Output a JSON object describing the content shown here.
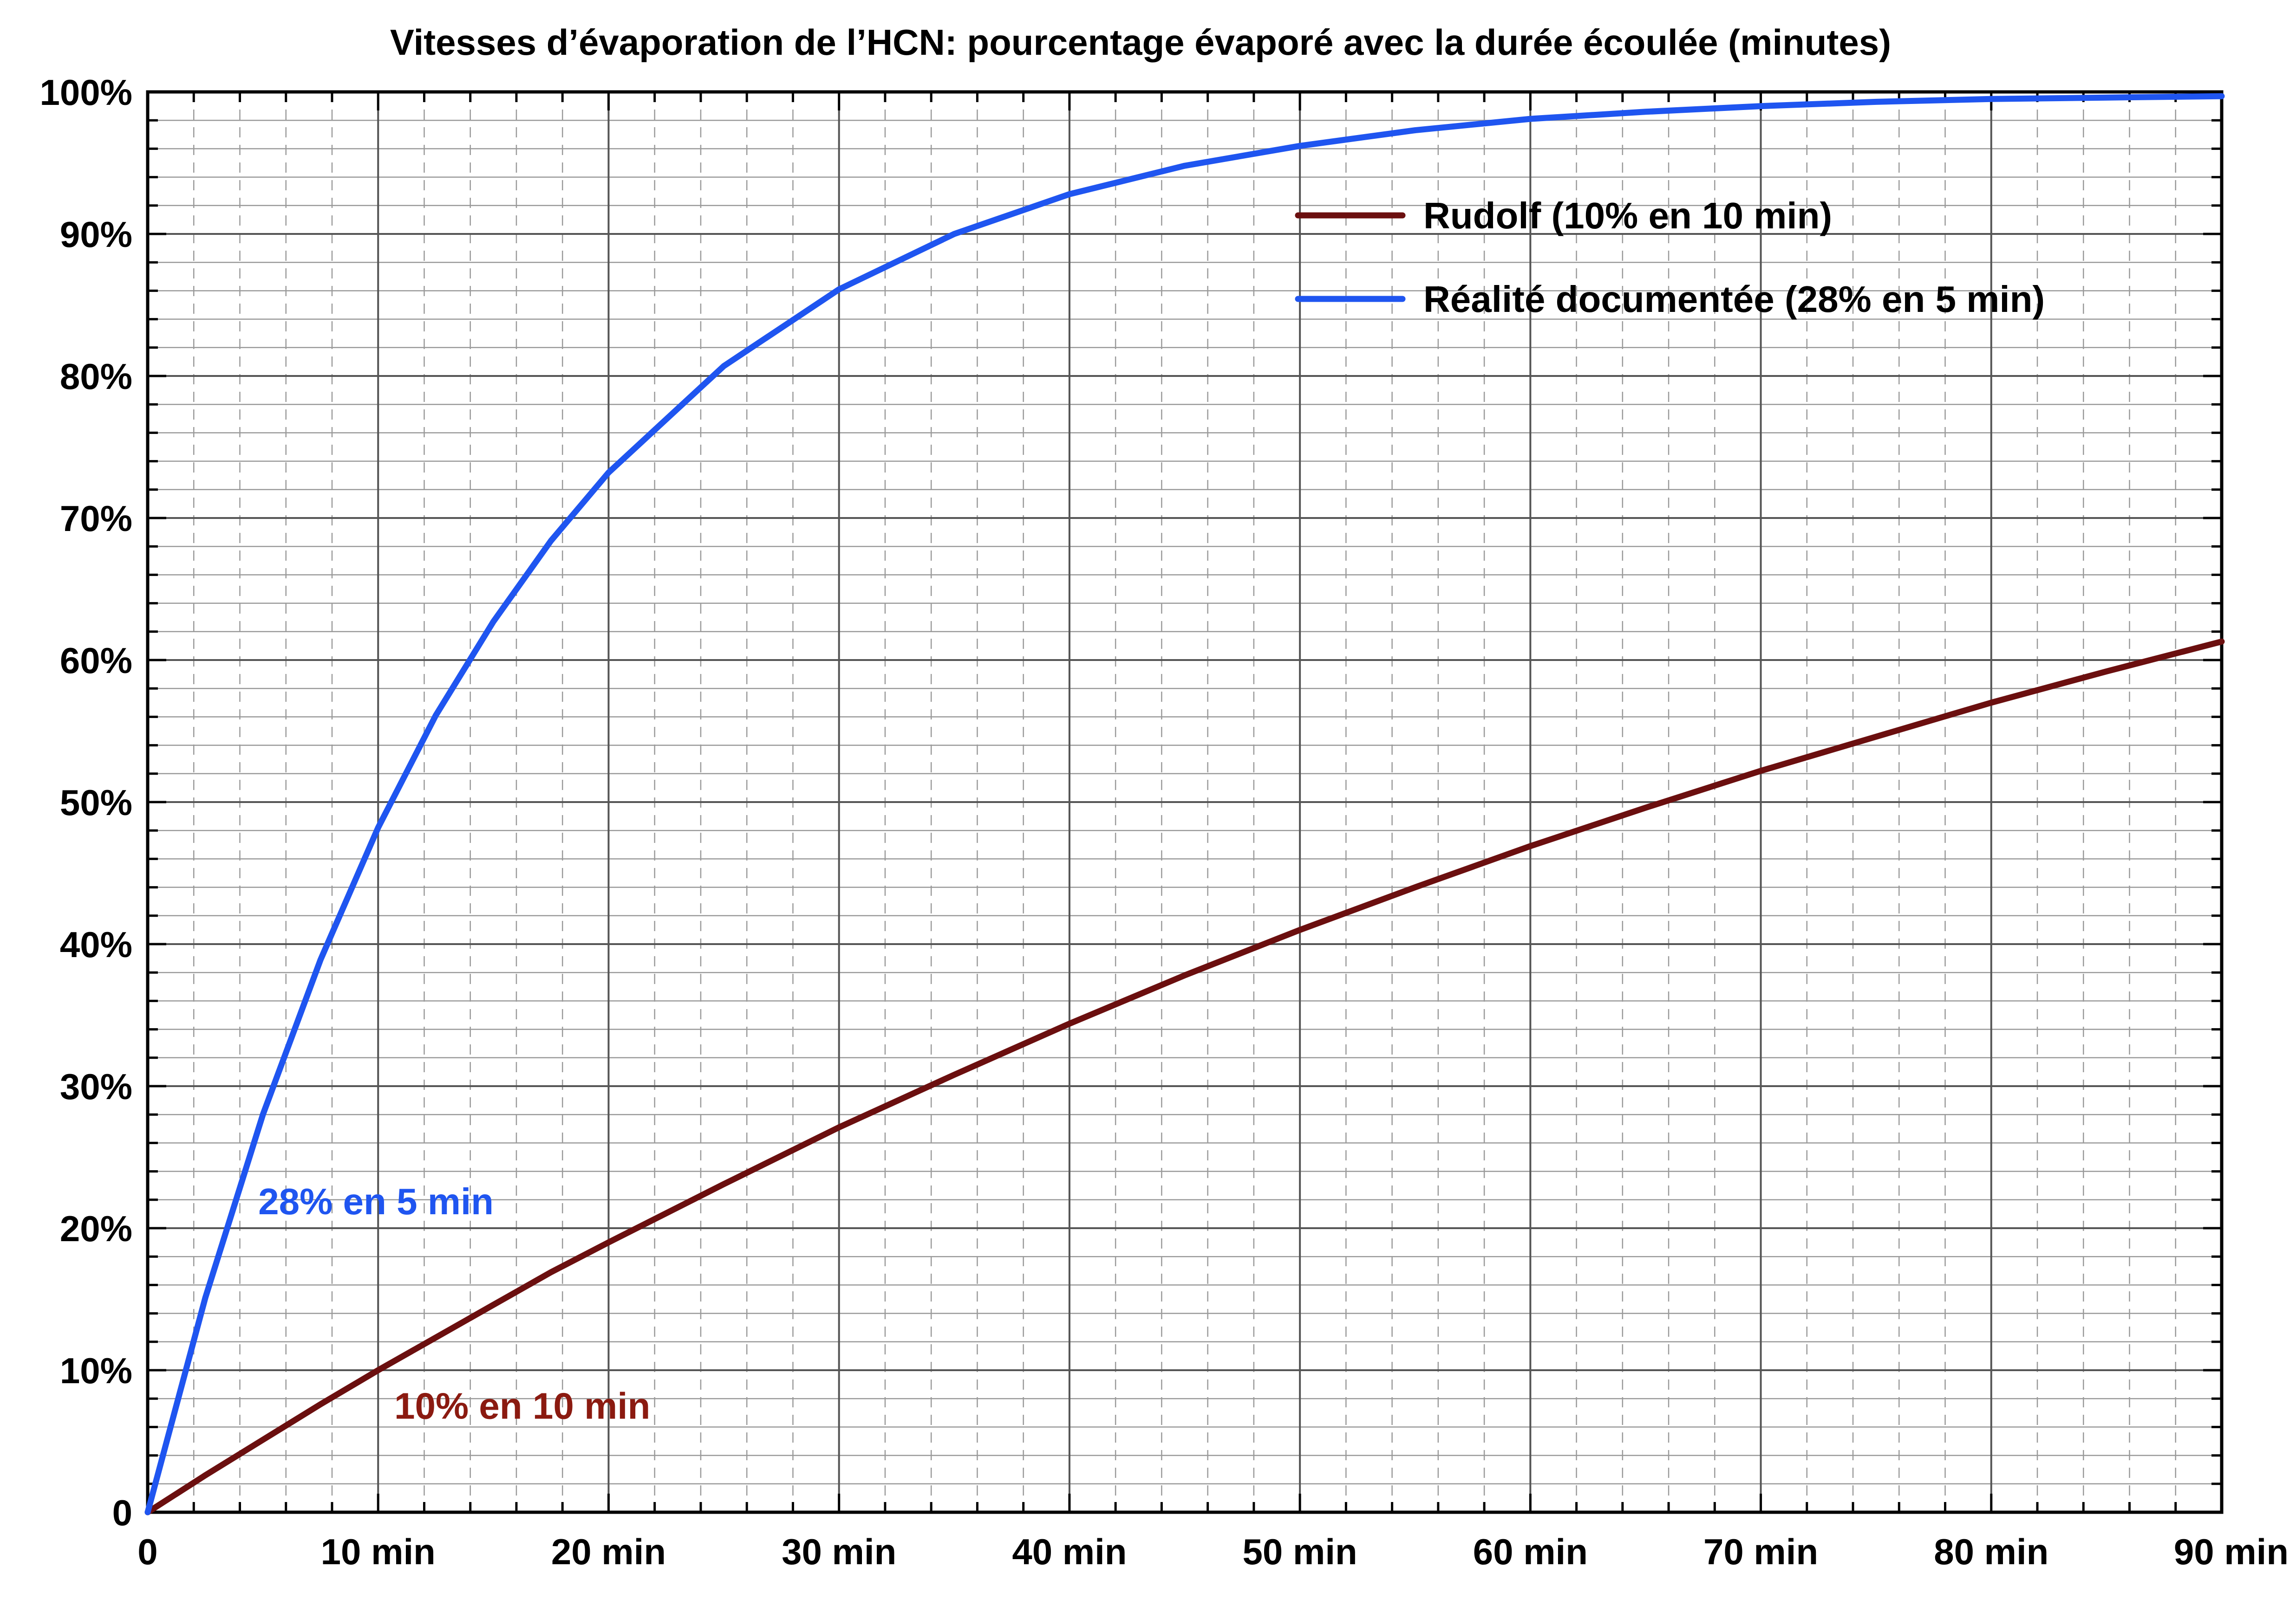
{
  "chart_data": {
    "type": "line",
    "title": "Vitesses d’évaporation de l’HCN: pourcentage évaporé avec la durée écoulée (minutes)",
    "xlabel": "",
    "ylabel": "",
    "xlim": [
      0,
      90
    ],
    "ylim": [
      0,
      100
    ],
    "x_ticks": [
      {
        "value": 0,
        "label": "0"
      },
      {
        "value": 10,
        "label": "10 min"
      },
      {
        "value": 20,
        "label": "20 min"
      },
      {
        "value": 30,
        "label": "30 min"
      },
      {
        "value": 40,
        "label": "40 min"
      },
      {
        "value": 50,
        "label": "50 min"
      },
      {
        "value": 60,
        "label": "60 min"
      },
      {
        "value": 70,
        "label": "70 min"
      },
      {
        "value": 80,
        "label": "80 min"
      },
      {
        "value": 90,
        "label": "90 min"
      }
    ],
    "y_ticks": [
      {
        "value": 0,
        "label": "0"
      },
      {
        "value": 10,
        "label": "10%"
      },
      {
        "value": 20,
        "label": "20%"
      },
      {
        "value": 30,
        "label": "30%"
      },
      {
        "value": 40,
        "label": "40%"
      },
      {
        "value": 50,
        "label": "50%"
      },
      {
        "value": 60,
        "label": "60%"
      },
      {
        "value": 70,
        "label": "70%"
      },
      {
        "value": 80,
        "label": "80%"
      },
      {
        "value": 90,
        "label": "90%"
      },
      {
        "value": 100,
        "label": "100%"
      }
    ],
    "x_minor_step": 2,
    "y_minor_step": 2,
    "grid": true,
    "legend_position": "top-right",
    "x": [
      0,
      2.5,
      5,
      7.5,
      10,
      12.5,
      15,
      17.5,
      20,
      25,
      30,
      35,
      40,
      45,
      50,
      55,
      60,
      65,
      70,
      75,
      80,
      85,
      90
    ],
    "series": [
      {
        "name": "Rudolf (10% en 10 min)",
        "color": "#6b0f0f",
        "values": [
          0,
          2.6,
          5.1,
          7.6,
          10.0,
          12.3,
          14.6,
          16.9,
          19.0,
          23.1,
          27.1,
          30.8,
          34.4,
          37.8,
          41.0,
          44.0,
          46.9,
          49.6,
          52.2,
          54.6,
          57.0,
          59.2,
          61.3
        ]
      },
      {
        "name": "Réalité documentée (28% en 5 min)",
        "color": "#1f55f0",
        "values": [
          0,
          15.1,
          28.0,
          38.9,
          48.2,
          56.1,
          62.7,
          68.4,
          73.2,
          80.7,
          86.1,
          90.0,
          92.8,
          94.8,
          96.2,
          97.3,
          98.1,
          98.6,
          99.0,
          99.3,
          99.5,
          99.6,
          99.7
        ]
      }
    ],
    "annotations": [
      {
        "text": "28% en 5 min",
        "x": 4.8,
        "y": 21.9,
        "color": "#1f55f0"
      },
      {
        "text": "10% en 10 min",
        "x": 10.7,
        "y": 7.5,
        "color": "#8b1a10"
      }
    ]
  }
}
